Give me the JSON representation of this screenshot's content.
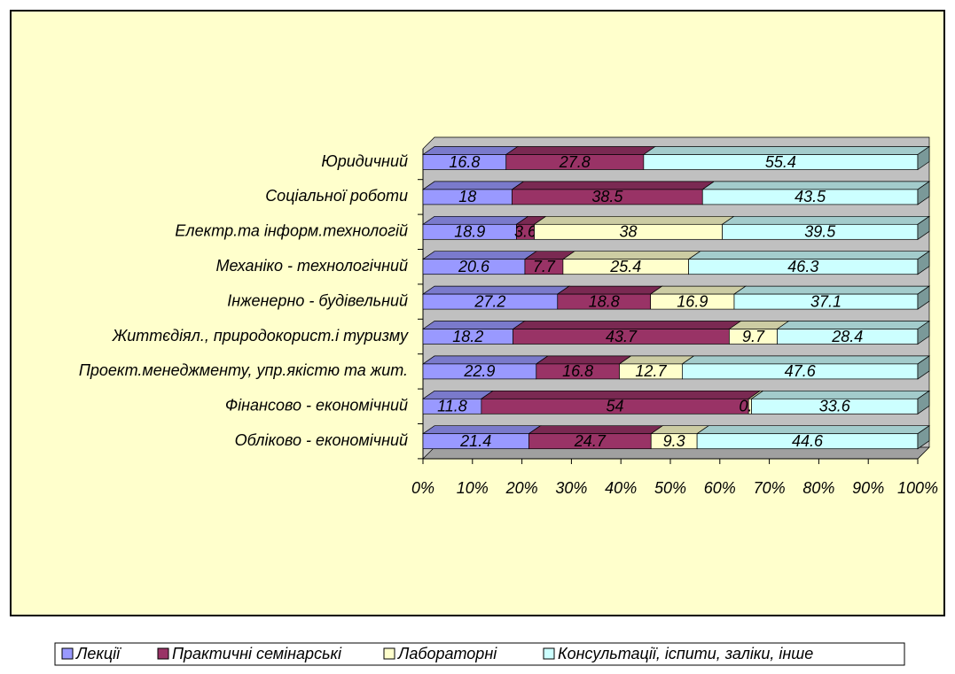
{
  "chart_data": {
    "type": "stacked-bar-100",
    "categories": [
      "Юридичний",
      "Соціальної роботи",
      "Електр.та інформ.технологій",
      "Механіко - технологічний",
      "Інженерно - будівельний",
      "Життєдіял., природокорист.і туризму",
      "Проект.менеджменту, упр.якістю та жит.",
      "Фінансово - економічний",
      "Обліково - економічний"
    ],
    "series": [
      {
        "name": "Лекції",
        "color": "#9999ff",
        "values": [
          16.8,
          18,
          18.9,
          20.6,
          27.2,
          18.2,
          22.9,
          11.8,
          21.4
        ]
      },
      {
        "name": "Практичні семінарські",
        "color": "#993366",
        "values": [
          27.8,
          38.5,
          3.6,
          7.7,
          18.8,
          43.7,
          16.8,
          54,
          24.7
        ]
      },
      {
        "name": "Лабораторні",
        "color": "#ffffcc",
        "values": [
          null,
          null,
          38,
          25.4,
          16.9,
          9.7,
          12.7,
          0.6,
          9.3
        ]
      },
      {
        "name": "Консультації, іспити, заліки, інше",
        "color": "#ccffff",
        "values": [
          55.4,
          43.5,
          39.5,
          46.3,
          37.1,
          28.4,
          47.6,
          33.6,
          44.6
        ]
      }
    ],
    "xlim": [
      0,
      100
    ],
    "xticks": [
      {
        "value": 0,
        "label": "0%"
      },
      {
        "value": 10,
        "label": "10%"
      },
      {
        "value": 20,
        "label": "20%"
      },
      {
        "value": 30,
        "label": "30%"
      },
      {
        "value": 40,
        "label": "40%"
      },
      {
        "value": 50,
        "label": "50%"
      },
      {
        "value": 60,
        "label": "60%"
      },
      {
        "value": 70,
        "label": "70%"
      },
      {
        "value": 80,
        "label": "80%"
      },
      {
        "value": 90,
        "label": "90%"
      },
      {
        "value": 100,
        "label": "100%"
      }
    ],
    "legend": "bottom"
  }
}
